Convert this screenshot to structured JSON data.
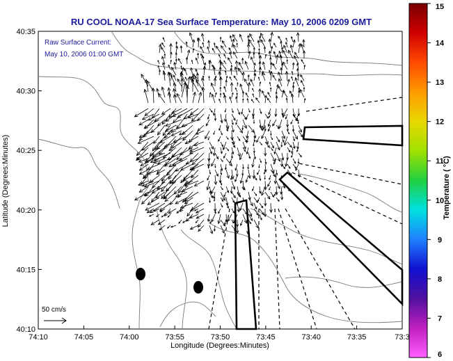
{
  "title": "RU COOL  NOAA-17  Sea Surface Temperature:  May 10, 2006 0209 GMT",
  "current_legend": {
    "line1": "Raw Surface Current:",
    "line2": "May 10, 2006 01:00 GMT"
  },
  "scale_arrow": {
    "label": "50 cm/s"
  },
  "axes": {
    "xlabel": "Longitude (Degrees:Minutes)",
    "ylabel": "Latitude (Degrees:Minutes)",
    "x_ticks": [
      "74:10",
      "74:05",
      "74:00",
      "73:55",
      "73:50",
      "73:45",
      "73:40",
      "73:35",
      "73:3"
    ],
    "y_ticks": [
      "40:35",
      "40:30",
      "40:25",
      "40:20",
      "40:15",
      "40:10"
    ]
  },
  "colorbar": {
    "label": "Temperature ( °C)",
    "ticks": [
      "15",
      "14",
      "13",
      "12",
      "11",
      "10",
      "9",
      "8",
      "7",
      "6"
    ],
    "colors": [
      "#7a0000",
      "#d00000",
      "#ff4a00",
      "#ff9a00",
      "#e8d800",
      "#a0e000",
      "#20d040",
      "#00e0e0",
      "#2080ff",
      "#1010d0",
      "#5010a0",
      "#c020c0",
      "#ff60ff"
    ]
  },
  "chart_data": {
    "type": "map",
    "title": "RU COOL  NOAA-17  Sea Surface Temperature:  May 10, 2006 0209 GMT",
    "xlabel": "Longitude (Degrees:Minutes)",
    "ylabel": "Latitude (Degrees:Minutes)",
    "xlim": [
      "74:10",
      "73:30"
    ],
    "ylim": [
      "40:10",
      "40:35"
    ],
    "colorbar_range": [
      6,
      15
    ],
    "markers": [
      {
        "name": "station",
        "lon": "73:59",
        "lat": "40:14.5"
      },
      {
        "name": "station",
        "lon": "73:52.5",
        "lat": "40:13.5"
      }
    ]
  }
}
